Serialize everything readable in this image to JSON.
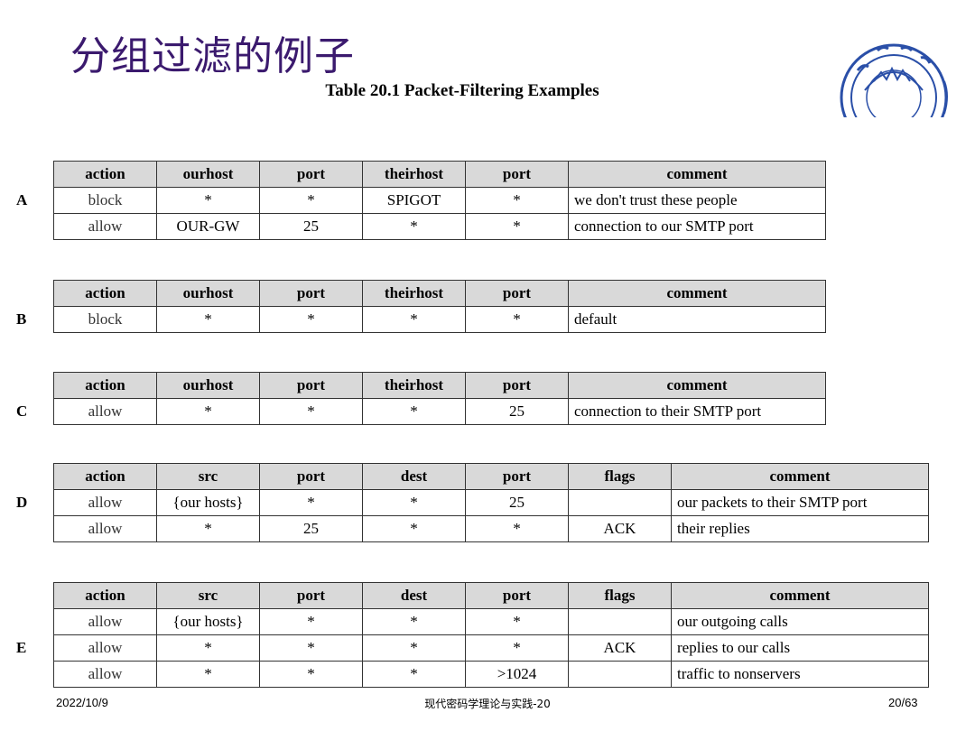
{
  "title": "分组过滤的例子",
  "caption": "Table 20.1  Packet-Filtering Examples",
  "tables": [
    {
      "label": "A",
      "headers": [
        "action",
        "ourhost",
        "port",
        "theirhost",
        "port",
        "comment"
      ],
      "rows": [
        [
          "block",
          "*",
          "*",
          "SPIGOT",
          "*",
          "we don't trust these people"
        ],
        [
          "allow",
          "OUR-GW",
          "25",
          "*",
          "*",
          "connection to our SMTP port"
        ]
      ]
    },
    {
      "label": "B",
      "headers": [
        "action",
        "ourhost",
        "port",
        "theirhost",
        "port",
        "comment"
      ],
      "rows": [
        [
          "block",
          "*",
          "*",
          "*",
          "*",
          "default"
        ]
      ]
    },
    {
      "label": "C",
      "headers": [
        "action",
        "ourhost",
        "port",
        "theirhost",
        "port",
        "comment"
      ],
      "rows": [
        [
          "allow",
          "*",
          "*",
          "*",
          "25",
          "connection to their SMTP port"
        ]
      ]
    },
    {
      "label": "D",
      "headers": [
        "action",
        "src",
        "port",
        "dest",
        "port",
        "flags",
        "comment"
      ],
      "rows": [
        [
          "allow",
          "{our hosts}",
          "*",
          "*",
          "25",
          "",
          "our packets to their SMTP port"
        ],
        [
          "allow",
          "*",
          "25",
          "*",
          "*",
          "ACK",
          "their replies"
        ]
      ]
    },
    {
      "label": "E",
      "headers": [
        "action",
        "src",
        "port",
        "dest",
        "port",
        "flags",
        "comment"
      ],
      "rows": [
        [
          "allow",
          "{our hosts}",
          "*",
          "*",
          "*",
          "",
          "our outgoing calls"
        ],
        [
          "allow",
          "*",
          "*",
          "*",
          "*",
          "ACK",
          "replies to our calls"
        ],
        [
          "allow",
          "*",
          "*",
          "*",
          ">1024",
          "",
          "traffic to nonservers"
        ]
      ]
    }
  ],
  "footer": {
    "date": "2022/10/9",
    "course": "现代密码学理论与实践-20",
    "page": "20/63"
  },
  "logo": {
    "icon": "university-seal-icon",
    "color": "#2a4fa8"
  }
}
